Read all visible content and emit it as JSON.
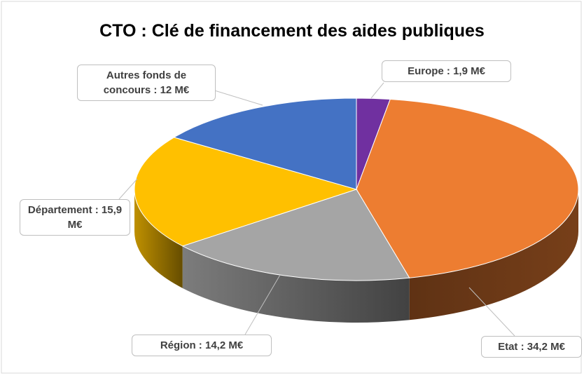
{
  "chart_data": {
    "type": "pie",
    "title": "CTO : Clé de financement des aides publiques",
    "values": [
      1.9,
      34.2,
      14.2,
      15.9,
      12
    ],
    "value_labels": [
      "Europe : 1,9 M€",
      "Etat : 34,2 M€",
      "Région : 14,2 M€",
      "Département : 15,9 M€",
      "Autres fonds de concours : 12 M€"
    ],
    "colors": [
      "#7030a0",
      "#ed7d31",
      "#a5a5a5",
      "#ffc000",
      "#4472c4"
    ]
  }
}
